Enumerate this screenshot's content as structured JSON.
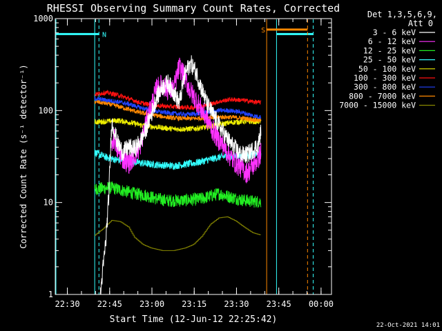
{
  "chart_data": {
    "type": "line",
    "title": "RHESSI Observing Summary Count Rates, Corrected",
    "xlabel": "Start Time (12-Jun-12 22:25:42)",
    "ylabel": "Corrected Count Rate (s⁻¹ detector⁻¹)",
    "x_unit": "minutes after 22:25:42",
    "xlim": [
      0,
      98
    ],
    "ylim": [
      1,
      1000
    ],
    "y_scale": "log",
    "x_ticks": [
      {
        "t": 4.3,
        "label": "22:30"
      },
      {
        "t": 19.3,
        "label": "22:45"
      },
      {
        "t": 34.3,
        "label": "23:00"
      },
      {
        "t": 49.3,
        "label": "23:15"
      },
      {
        "t": 64.3,
        "label": "23:30"
      },
      {
        "t": 79.3,
        "label": "23:45"
      },
      {
        "t": 94.3,
        "label": "00:00"
      }
    ],
    "y_ticks": [
      {
        "v": 1,
        "label": "1"
      },
      {
        "v": 10,
        "label": "10"
      },
      {
        "v": 100,
        "label": "100"
      },
      {
        "v": 1000,
        "label": "1000"
      }
    ],
    "legend_position": "top-right",
    "detectors": "Det 1,3,5,6,9,",
    "attenuator": "Att 0",
    "timestamp": "22-Oct-2021 14:01",
    "series": [
      {
        "name": "3 - 6 keV",
        "color": "#ffffff",
        "points": [
          [
            16,
            1
          ],
          [
            17,
            2
          ],
          [
            18,
            4
          ],
          [
            19,
            12
          ],
          [
            20,
            75
          ],
          [
            21,
            60
          ],
          [
            22,
            45
          ],
          [
            24,
            35
          ],
          [
            26,
            40
          ],
          [
            28,
            38
          ],
          [
            30,
            45
          ],
          [
            32,
            60
          ],
          [
            34,
            90
          ],
          [
            36,
            140
          ],
          [
            38,
            180
          ],
          [
            40,
            200
          ],
          [
            42,
            160
          ],
          [
            44,
            120
          ],
          [
            46,
            250
          ],
          [
            48,
            330
          ],
          [
            50,
            260
          ],
          [
            52,
            170
          ],
          [
            54,
            115
          ],
          [
            56,
            90
          ],
          [
            58,
            70
          ],
          [
            60,
            55
          ],
          [
            62,
            45
          ],
          [
            64,
            38
          ],
          [
            66,
            33
          ],
          [
            68,
            33
          ],
          [
            70,
            37
          ],
          [
            72,
            42
          ],
          [
            73,
            60
          ]
        ]
      },
      {
        "name": "6 - 12 keV",
        "color": "#ff33ff",
        "points": [
          [
            20,
            45
          ],
          [
            21,
            50
          ],
          [
            22,
            38
          ],
          [
            24,
            30
          ],
          [
            26,
            27
          ],
          [
            28,
            32
          ],
          [
            30,
            40
          ],
          [
            32,
            70
          ],
          [
            34,
            110
          ],
          [
            36,
            175
          ],
          [
            38,
            190
          ],
          [
            40,
            170
          ],
          [
            42,
            170
          ],
          [
            44,
            300
          ],
          [
            46,
            230
          ],
          [
            48,
            160
          ],
          [
            50,
            130
          ],
          [
            52,
            100
          ],
          [
            54,
            80
          ],
          [
            56,
            60
          ],
          [
            58,
            48
          ],
          [
            60,
            40
          ],
          [
            62,
            32
          ],
          [
            64,
            27
          ],
          [
            66,
            24
          ],
          [
            68,
            21
          ],
          [
            70,
            25
          ],
          [
            72,
            30
          ],
          [
            73,
            35
          ]
        ]
      },
      {
        "name": "12 - 25 keV",
        "color": "#22ee22",
        "points": [
          [
            14,
            14
          ],
          [
            20,
            14.5
          ],
          [
            24,
            13.5
          ],
          [
            28,
            12.5
          ],
          [
            32,
            12
          ],
          [
            36,
            11
          ],
          [
            40,
            10.5
          ],
          [
            44,
            10.5
          ],
          [
            48,
            10.7
          ],
          [
            52,
            11
          ],
          [
            54,
            11.5
          ],
          [
            58,
            12.5
          ],
          [
            62,
            11.5
          ],
          [
            66,
            10.7
          ],
          [
            70,
            10.3
          ],
          [
            73,
            10.2
          ]
        ]
      },
      {
        "name": "25 - 50 keV",
        "color": "#33ffff",
        "points": [
          [
            14,
            35
          ],
          [
            18,
            31
          ],
          [
            22,
            29
          ],
          [
            26,
            28
          ],
          [
            30,
            27
          ],
          [
            34,
            26
          ],
          [
            38,
            25.5
          ],
          [
            42,
            25
          ],
          [
            46,
            26
          ],
          [
            50,
            27
          ],
          [
            54,
            29
          ],
          [
            58,
            31
          ],
          [
            62,
            32
          ],
          [
            66,
            32
          ],
          [
            70,
            33
          ],
          [
            73,
            33
          ]
        ]
      },
      {
        "name": "50 - 100 keV",
        "color": "#eeee00",
        "points": [
          [
            14,
            75
          ],
          [
            18,
            76
          ],
          [
            22,
            78
          ],
          [
            26,
            75
          ],
          [
            30,
            70
          ],
          [
            34,
            67
          ],
          [
            38,
            65
          ],
          [
            42,
            63
          ],
          [
            46,
            63
          ],
          [
            50,
            64
          ],
          [
            54,
            66
          ],
          [
            58,
            70
          ],
          [
            62,
            74
          ],
          [
            66,
            76
          ],
          [
            70,
            76
          ],
          [
            73,
            76
          ]
        ]
      },
      {
        "name": "100 - 300 keV",
        "color": "#ff1111",
        "points": [
          [
            14,
            150
          ],
          [
            18,
            157
          ],
          [
            22,
            148
          ],
          [
            26,
            135
          ],
          [
            30,
            122
          ],
          [
            34,
            115
          ],
          [
            38,
            112
          ],
          [
            42,
            110
          ],
          [
            46,
            108
          ],
          [
            50,
            108
          ],
          [
            54,
            115
          ],
          [
            58,
            125
          ],
          [
            62,
            132
          ],
          [
            66,
            130
          ],
          [
            70,
            125
          ],
          [
            73,
            122
          ]
        ]
      },
      {
        "name": "300 - 800 keV",
        "color": "#2244ff",
        "points": [
          [
            14,
            135
          ],
          [
            18,
            130
          ],
          [
            22,
            125
          ],
          [
            26,
            118
          ],
          [
            30,
            108
          ],
          [
            34,
            100
          ],
          [
            38,
            96
          ],
          [
            42,
            93
          ],
          [
            46,
            91
          ],
          [
            50,
            92
          ],
          [
            54,
            96
          ],
          [
            58,
            100
          ],
          [
            62,
            100
          ],
          [
            66,
            96
          ],
          [
            70,
            88
          ],
          [
            73,
            85
          ]
        ]
      },
      {
        "name": "800 - 7000 keV",
        "color": "#ff8800",
        "points": [
          [
            14,
            125
          ],
          [
            18,
            120
          ],
          [
            22,
            112
          ],
          [
            26,
            103
          ],
          [
            30,
            95
          ],
          [
            34,
            90
          ],
          [
            38,
            86
          ],
          [
            42,
            83
          ],
          [
            46,
            82
          ],
          [
            50,
            82
          ],
          [
            54,
            84
          ],
          [
            58,
            85
          ],
          [
            62,
            85
          ],
          [
            66,
            83
          ],
          [
            70,
            80
          ],
          [
            73,
            78
          ]
        ]
      },
      {
        "name": "7000 - 15000 keV",
        "color": "#888800",
        "points": [
          [
            14,
            4.4
          ],
          [
            17,
            5.2
          ],
          [
            20,
            6.4
          ],
          [
            23,
            6.2
          ],
          [
            26,
            5.4
          ],
          [
            28,
            4.2
          ],
          [
            31,
            3.5
          ],
          [
            34,
            3.2
          ],
          [
            38,
            3.0
          ],
          [
            42,
            3.0
          ],
          [
            46,
            3.2
          ],
          [
            49,
            3.5
          ],
          [
            52,
            4.3
          ],
          [
            55,
            5.8
          ],
          [
            58,
            6.8
          ],
          [
            61,
            7.0
          ],
          [
            64,
            6.3
          ],
          [
            67,
            5.4
          ],
          [
            70,
            4.7
          ],
          [
            73,
            4.4
          ]
        ]
      }
    ],
    "flags": [
      {
        "name": "N",
        "color": "#33ffff",
        "segments": [
          [
            0,
            15.5
          ],
          [
            78.5,
            91.5
          ]
        ],
        "level": 680,
        "solid_x": [
          -1,
          14,
          78.5
        ],
        "dashed_x": [
          15.5,
          91.5
        ]
      },
      {
        "name": "S",
        "color": "#ff8800",
        "segments": [
          [
            75,
            89.5
          ]
        ],
        "level": 760,
        "solid_x": [
          75
        ],
        "dashed_x": [
          89.5
        ]
      }
    ]
  }
}
